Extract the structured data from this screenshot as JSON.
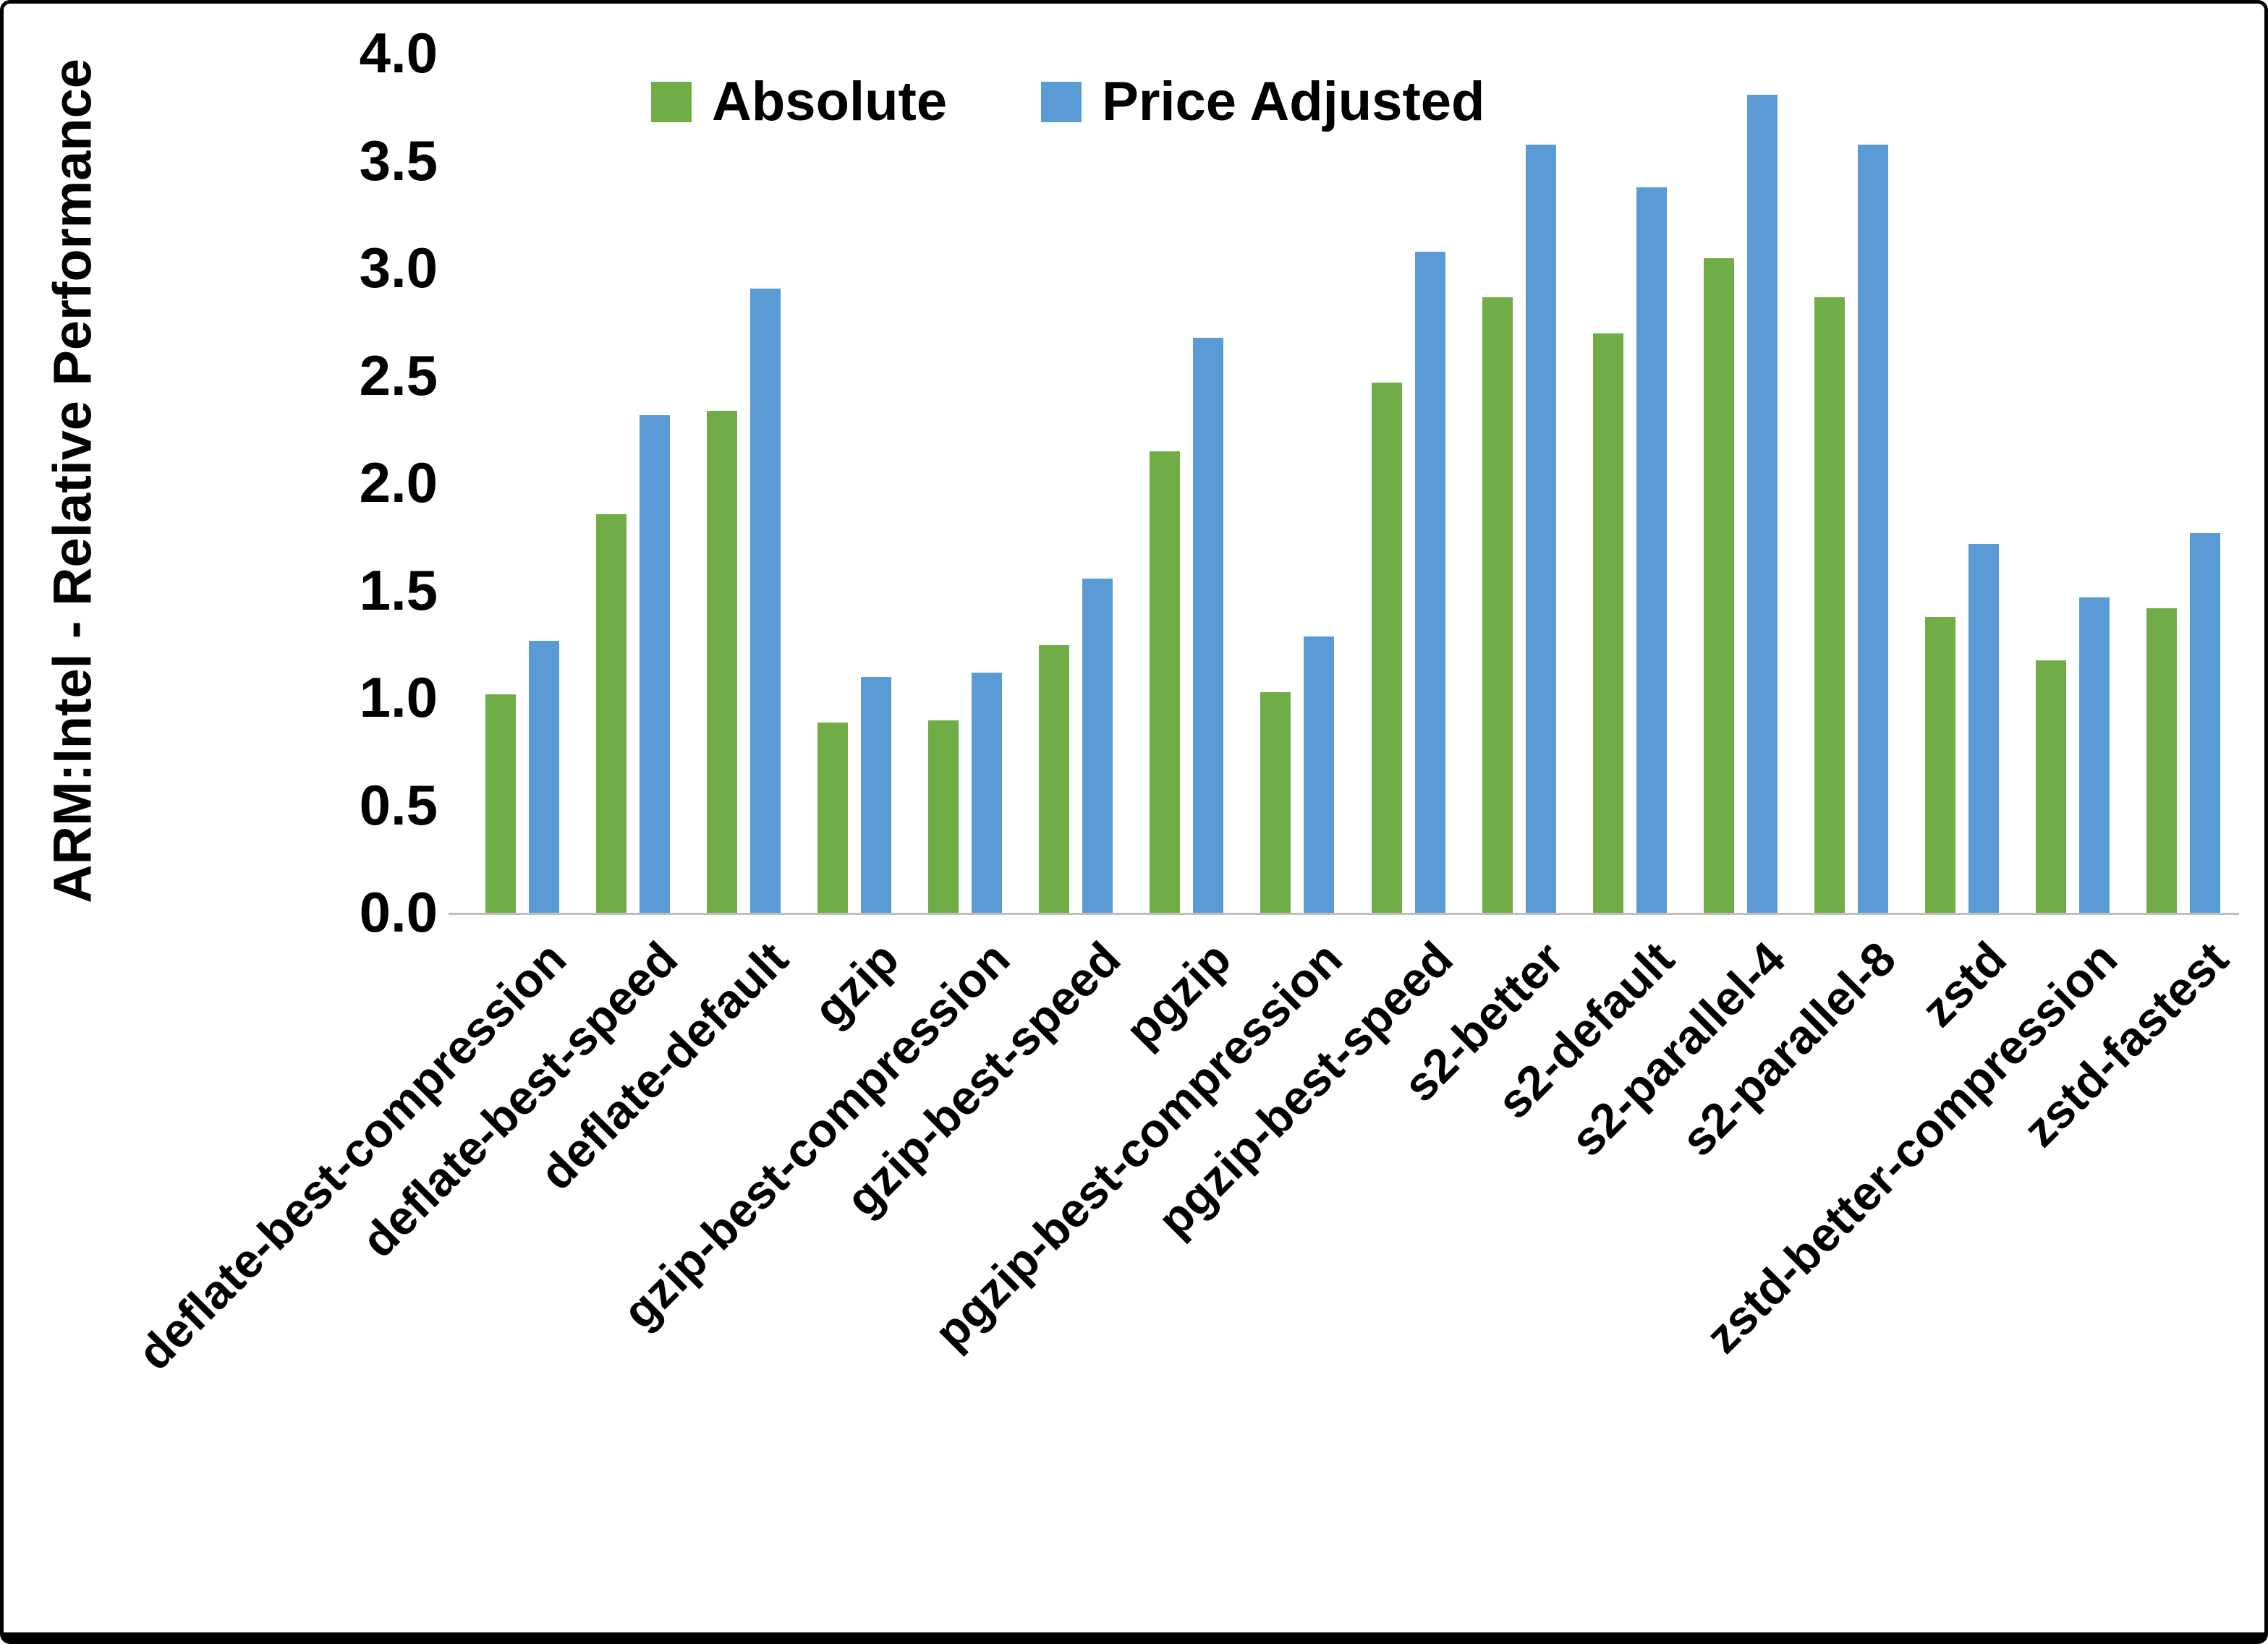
{
  "chart_data": {
    "type": "bar",
    "title": "",
    "xlabel": "",
    "ylabel": "ARM:Intel - Relative Performance",
    "ylim": [
      0,
      4
    ],
    "ytick_step": 0.5,
    "grid": false,
    "legend_position": "top-center-inside",
    "categories": [
      "deflate-best-compression",
      "deflate-best-speed",
      "deflate-default",
      "gzip",
      "gzip-best-compression",
      "gzip-best-speed",
      "pgzip",
      "pgzip-best-compression",
      "pgzip-best-speed",
      "s2-better",
      "s2-default",
      "s2-parallel-4",
      "s2-parallel-8",
      "zstd",
      "zstd-better-compression",
      "zstd-fastest"
    ],
    "series": [
      {
        "name": "Absolute",
        "color": "#70AD47",
        "values": [
          1.02,
          1.86,
          2.34,
          0.89,
          0.9,
          1.25,
          2.15,
          1.03,
          2.47,
          2.87,
          2.7,
          3.05,
          2.87,
          1.38,
          1.18,
          1.42
        ]
      },
      {
        "name": "Price Adjusted",
        "color": "#5B9BD5",
        "values": [
          1.27,
          2.32,
          2.91,
          1.1,
          1.12,
          1.56,
          2.68,
          1.29,
          3.08,
          3.58,
          3.38,
          3.81,
          3.58,
          1.72,
          1.47,
          1.77
        ]
      }
    ]
  },
  "colors": {
    "background": "#FFFFFF",
    "border": "#000000",
    "axis_line": "#BFBFBF",
    "text": "#000000"
  }
}
